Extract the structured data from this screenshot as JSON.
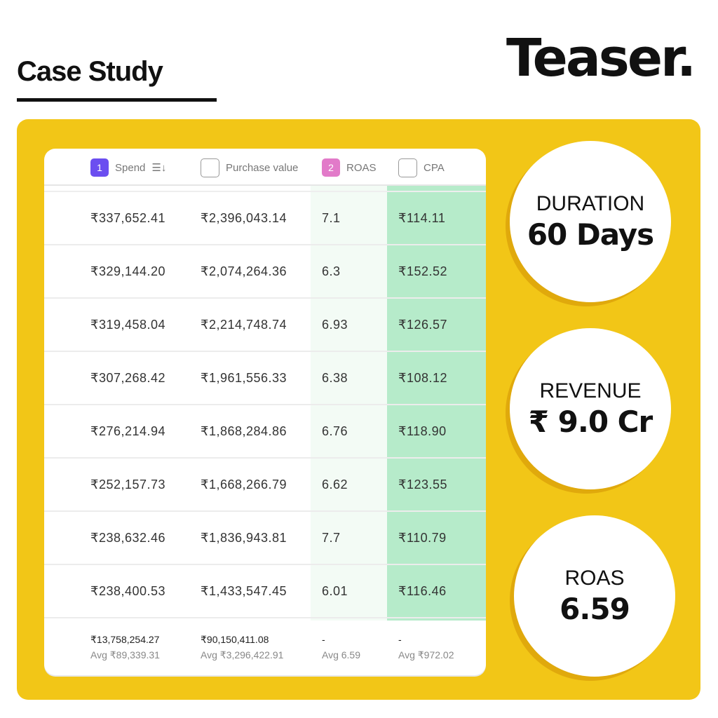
{
  "header": {
    "title": "Case Study",
    "logo": "Teaser."
  },
  "table": {
    "columns": [
      {
        "badge": "1",
        "label": "Spend",
        "badge_color": "#6b4ef0",
        "sort_icon": "sort-descending-icon"
      },
      {
        "badge": "",
        "label": "Purchase value"
      },
      {
        "badge": "2",
        "label": "ROAS",
        "badge_color": "#e27ac9"
      },
      {
        "badge": "",
        "label": "CPA"
      }
    ],
    "rows": [
      [
        "₹337,652.41",
        "₹2,396,043.14",
        "7.1",
        "₹114.11"
      ],
      [
        "₹329,144.20",
        "₹2,074,264.36",
        "6.3",
        "₹152.52"
      ],
      [
        "₹319,458.04",
        "₹2,214,748.74",
        "6.93",
        "₹126.57"
      ],
      [
        "₹307,268.42",
        "₹1,961,556.33",
        "6.38",
        "₹108.12"
      ],
      [
        "₹276,214.94",
        "₹1,868,284.86",
        "6.76",
        "₹118.90"
      ],
      [
        "₹252,157.73",
        "₹1,668,266.79",
        "6.62",
        "₹123.55"
      ],
      [
        "₹238,632.46",
        "₹1,836,943.81",
        "7.7",
        "₹110.79"
      ],
      [
        "₹238,400.53",
        "₹1,433,547.45",
        "6.01",
        "₹116.46"
      ]
    ],
    "footer": [
      {
        "total": "₹13,758,254.27",
        "avg": "Avg ₹89,339.31"
      },
      {
        "total": "₹90,150,411.08",
        "avg": "Avg ₹3,296,422.91"
      },
      {
        "total": "-",
        "avg": "Avg 6.59"
      },
      {
        "total": "-",
        "avg": "Avg ₹972.02"
      }
    ]
  },
  "stats": [
    {
      "label": "DURATION",
      "value": "60 Days"
    },
    {
      "label": "REVENUE",
      "value": "₹ 9.0 Cr"
    },
    {
      "label": "ROAS",
      "value": "6.59"
    }
  ],
  "colors": {
    "panel": "#f2c617",
    "highlight": "#b6ebca"
  }
}
